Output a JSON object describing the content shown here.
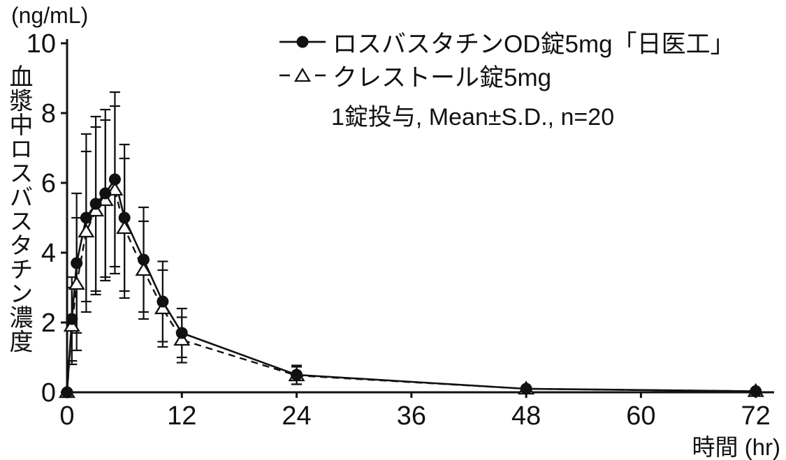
{
  "chart_data": {
    "type": "line",
    "title": "",
    "y_unit": "(ng/mL)",
    "ylabel": "血漿中ロスバスタチン濃度",
    "xlabel": "時間 (hr)",
    "note": "1錠投与, Mean±S.D., n=20",
    "x": [
      0,
      0.5,
      1,
      2,
      3,
      4,
      5,
      6,
      8,
      10,
      12,
      24,
      48,
      72
    ],
    "series": [
      {
        "name": "ロスバスタチンOD錠5mg「日医工」",
        "marker": "filled-circle",
        "line": "solid",
        "values": [
          0,
          2.1,
          3.7,
          5.0,
          5.4,
          5.7,
          6.1,
          5.0,
          3.8,
          2.6,
          1.7,
          0.5,
          0.1,
          0.03
        ],
        "sd": [
          0,
          1.2,
          2.0,
          2.4,
          2.5,
          2.4,
          2.5,
          2.1,
          1.5,
          1.15,
          0.7,
          0.27,
          0.05,
          0.02
        ]
      },
      {
        "name": "クレストール錠5mg",
        "marker": "open-triangle",
        "line": "dashed",
        "values": [
          0,
          1.9,
          3.1,
          4.6,
          5.2,
          5.5,
          5.8,
          4.7,
          3.5,
          2.4,
          1.5,
          0.48,
          0.1,
          0.03
        ],
        "sd": [
          0,
          1.1,
          1.9,
          2.3,
          2.4,
          2.3,
          2.4,
          2.0,
          1.4,
          1.1,
          0.65,
          0.25,
          0.05,
          0.02
        ]
      }
    ],
    "x_ticks": [
      0,
      12,
      24,
      36,
      48,
      60,
      72
    ],
    "y_ticks": [
      0,
      2,
      4,
      6,
      8,
      10
    ],
    "xlim": [
      0,
      72
    ],
    "ylim": [
      0,
      10
    ],
    "grid": false,
    "legend_position": "top-center",
    "color": "#111111"
  }
}
